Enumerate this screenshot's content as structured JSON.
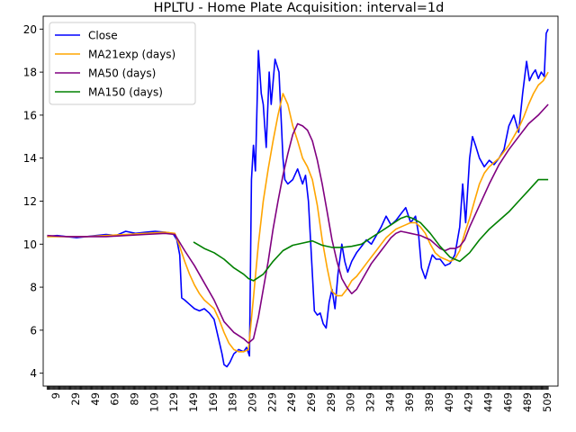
{
  "chart_data": {
    "type": "line",
    "title": "HPLTU - Home Plate Acquisition: interval=1d",
    "xlabel": "",
    "ylabel": "",
    "xlim": [
      -4,
      520
    ],
    "ylim": [
      3.4,
      20.6
    ],
    "y_ticks": [
      4,
      6,
      8,
      10,
      12,
      14,
      16,
      18,
      20
    ],
    "x_ticks": [
      9,
      29,
      49,
      69,
      89,
      109,
      129,
      149,
      169,
      189,
      209,
      229,
      249,
      269,
      289,
      309,
      329,
      349,
      369,
      389,
      409,
      429,
      449,
      469,
      489,
      509
    ],
    "grid": false,
    "legend_position": "upper left",
    "series": [
      {
        "name": "Close",
        "color": "#0000ff",
        "x": [
          0,
          10,
          20,
          30,
          40,
          50,
          60,
          70,
          80,
          90,
          100,
          110,
          120,
          128,
          132,
          135,
          137,
          140,
          145,
          150,
          155,
          160,
          165,
          170,
          175,
          178,
          180,
          183,
          186,
          190,
          195,
          200,
          203,
          206,
          208,
          210,
          212,
          215,
          218,
          220,
          223,
          226,
          228,
          232,
          236,
          240,
          242,
          245,
          250,
          255,
          260,
          263,
          266,
          270,
          272,
          275,
          278,
          281,
          284,
          287,
          290,
          293,
          296,
          300,
          303,
          306,
          310,
          315,
          320,
          325,
          330,
          335,
          340,
          345,
          350,
          355,
          360,
          365,
          370,
          375,
          378,
          381,
          385,
          388,
          392,
          396,
          400,
          405,
          410,
          415,
          420,
          423,
          426,
          430,
          433,
          436,
          440,
          445,
          450,
          455,
          460,
          465,
          470,
          475,
          480,
          484,
          488,
          491,
          494,
          497,
          500,
          503,
          506,
          508,
          510
        ],
        "values": [
          10.35,
          10.4,
          10.35,
          10.3,
          10.35,
          10.4,
          10.45,
          10.4,
          10.6,
          10.5,
          10.55,
          10.6,
          10.55,
          10.5,
          10.2,
          9.5,
          7.5,
          7.4,
          7.2,
          7.0,
          6.9,
          7.0,
          6.8,
          6.5,
          5.5,
          4.9,
          4.4,
          4.3,
          4.5,
          4.9,
          5.1,
          5.0,
          5.2,
          4.8,
          13.0,
          14.6,
          13.4,
          19.0,
          17.0,
          16.5,
          14.5,
          18.0,
          16.5,
          18.6,
          18.0,
          14.0,
          13.0,
          12.8,
          13.0,
          13.5,
          12.8,
          13.2,
          12.0,
          8.6,
          6.9,
          6.7,
          6.8,
          6.3,
          6.1,
          7.3,
          7.9,
          7.0,
          8.6,
          10.0,
          9.2,
          8.7,
          9.2,
          9.6,
          9.9,
          10.2,
          10.0,
          10.4,
          10.8,
          11.3,
          10.9,
          11.1,
          11.4,
          11.7,
          11.0,
          11.3,
          10.5,
          8.9,
          8.4,
          8.9,
          9.5,
          9.3,
          9.3,
          9.0,
          9.1,
          9.5,
          10.8,
          12.8,
          11.0,
          14.0,
          15.0,
          14.6,
          14.0,
          13.6,
          13.9,
          13.7,
          14.0,
          14.4,
          15.5,
          16.0,
          15.2,
          17.0,
          18.5,
          17.6,
          17.9,
          18.1,
          17.7,
          18.0,
          17.8,
          19.8,
          20.0
        ]
      },
      {
        "name": "MA21exp (days)",
        "color": "#ffa500",
        "x": [
          0,
          20,
          40,
          60,
          80,
          100,
          120,
          130,
          135,
          140,
          145,
          150,
          155,
          160,
          165,
          170,
          175,
          180,
          185,
          190,
          195,
          200,
          205,
          210,
          215,
          220,
          225,
          230,
          235,
          240,
          245,
          250,
          255,
          260,
          265,
          270,
          275,
          280,
          285,
          290,
          295,
          300,
          305,
          310,
          315,
          320,
          325,
          330,
          335,
          340,
          345,
          350,
          355,
          360,
          365,
          370,
          375,
          380,
          385,
          390,
          395,
          400,
          405,
          410,
          415,
          420,
          425,
          430,
          435,
          440,
          445,
          450,
          455,
          460,
          465,
          470,
          475,
          480,
          485,
          490,
          495,
          500,
          505,
          510
        ],
        "values": [
          10.35,
          10.35,
          10.35,
          10.4,
          10.45,
          10.5,
          10.55,
          10.5,
          9.9,
          9.2,
          8.6,
          8.1,
          7.7,
          7.4,
          7.2,
          7.0,
          6.5,
          5.9,
          5.4,
          5.1,
          5.0,
          5.0,
          5.1,
          7.5,
          10.0,
          12.0,
          13.5,
          14.8,
          16.0,
          17.0,
          16.5,
          15.5,
          14.8,
          14.0,
          13.6,
          13.0,
          11.8,
          10.2,
          8.9,
          7.8,
          7.6,
          7.6,
          7.9,
          8.3,
          8.5,
          8.8,
          9.1,
          9.4,
          9.7,
          10.0,
          10.3,
          10.5,
          10.7,
          10.8,
          10.9,
          11.0,
          11.0,
          10.8,
          10.5,
          10.0,
          9.6,
          9.4,
          9.3,
          9.2,
          9.3,
          9.7,
          10.5,
          11.2,
          12.0,
          12.8,
          13.3,
          13.6,
          13.8,
          14.0,
          14.3,
          14.6,
          15.0,
          15.4,
          15.9,
          16.5,
          17.0,
          17.4,
          17.6,
          18.0
        ]
      },
      {
        "name": "MA50 (days)",
        "color": "#800080",
        "x": [
          0,
          20,
          40,
          60,
          80,
          100,
          120,
          130,
          140,
          150,
          160,
          170,
          180,
          190,
          200,
          205,
          210,
          215,
          220,
          225,
          230,
          235,
          240,
          245,
          250,
          255,
          260,
          265,
          270,
          275,
          280,
          285,
          290,
          295,
          300,
          305,
          310,
          315,
          320,
          325,
          330,
          335,
          340,
          345,
          350,
          355,
          360,
          365,
          370,
          375,
          380,
          385,
          390,
          395,
          400,
          405,
          410,
          415,
          420,
          425,
          430,
          440,
          450,
          460,
          470,
          480,
          490,
          500,
          510
        ],
        "values": [
          10.4,
          10.35,
          10.35,
          10.35,
          10.4,
          10.45,
          10.5,
          10.45,
          9.7,
          9.0,
          8.2,
          7.4,
          6.4,
          5.9,
          5.6,
          5.4,
          5.6,
          6.6,
          7.9,
          9.2,
          10.7,
          12.0,
          13.2,
          14.2,
          15.1,
          15.6,
          15.5,
          15.3,
          14.8,
          13.9,
          12.8,
          11.5,
          10.2,
          9.2,
          8.4,
          8.0,
          7.7,
          7.9,
          8.3,
          8.7,
          9.1,
          9.4,
          9.7,
          10.0,
          10.3,
          10.5,
          10.6,
          10.55,
          10.5,
          10.45,
          10.4,
          10.3,
          10.2,
          10.0,
          9.8,
          9.7,
          9.8,
          9.8,
          9.9,
          10.2,
          10.8,
          11.8,
          12.8,
          13.7,
          14.4,
          15.0,
          15.6,
          16.0,
          16.5
        ]
      },
      {
        "name": "MA150 (days)",
        "color": "#008000",
        "x": [
          149,
          160,
          170,
          180,
          190,
          200,
          205,
          210,
          220,
          230,
          240,
          250,
          260,
          270,
          280,
          290,
          300,
          310,
          320,
          330,
          340,
          350,
          360,
          366,
          372,
          380,
          390,
          400,
          410,
          420,
          430,
          440,
          450,
          460,
          470,
          480,
          490,
          500,
          510
        ],
        "values": [
          10.1,
          9.8,
          9.6,
          9.3,
          8.9,
          8.6,
          8.4,
          8.3,
          8.6,
          9.2,
          9.7,
          9.95,
          10.05,
          10.15,
          9.95,
          9.85,
          9.85,
          9.9,
          10.0,
          10.3,
          10.6,
          10.9,
          11.2,
          11.3,
          11.2,
          11.0,
          10.5,
          9.9,
          9.4,
          9.2,
          9.6,
          10.2,
          10.7,
          11.1,
          11.5,
          12.0,
          12.5,
          13.0,
          13.0
        ]
      }
    ]
  }
}
